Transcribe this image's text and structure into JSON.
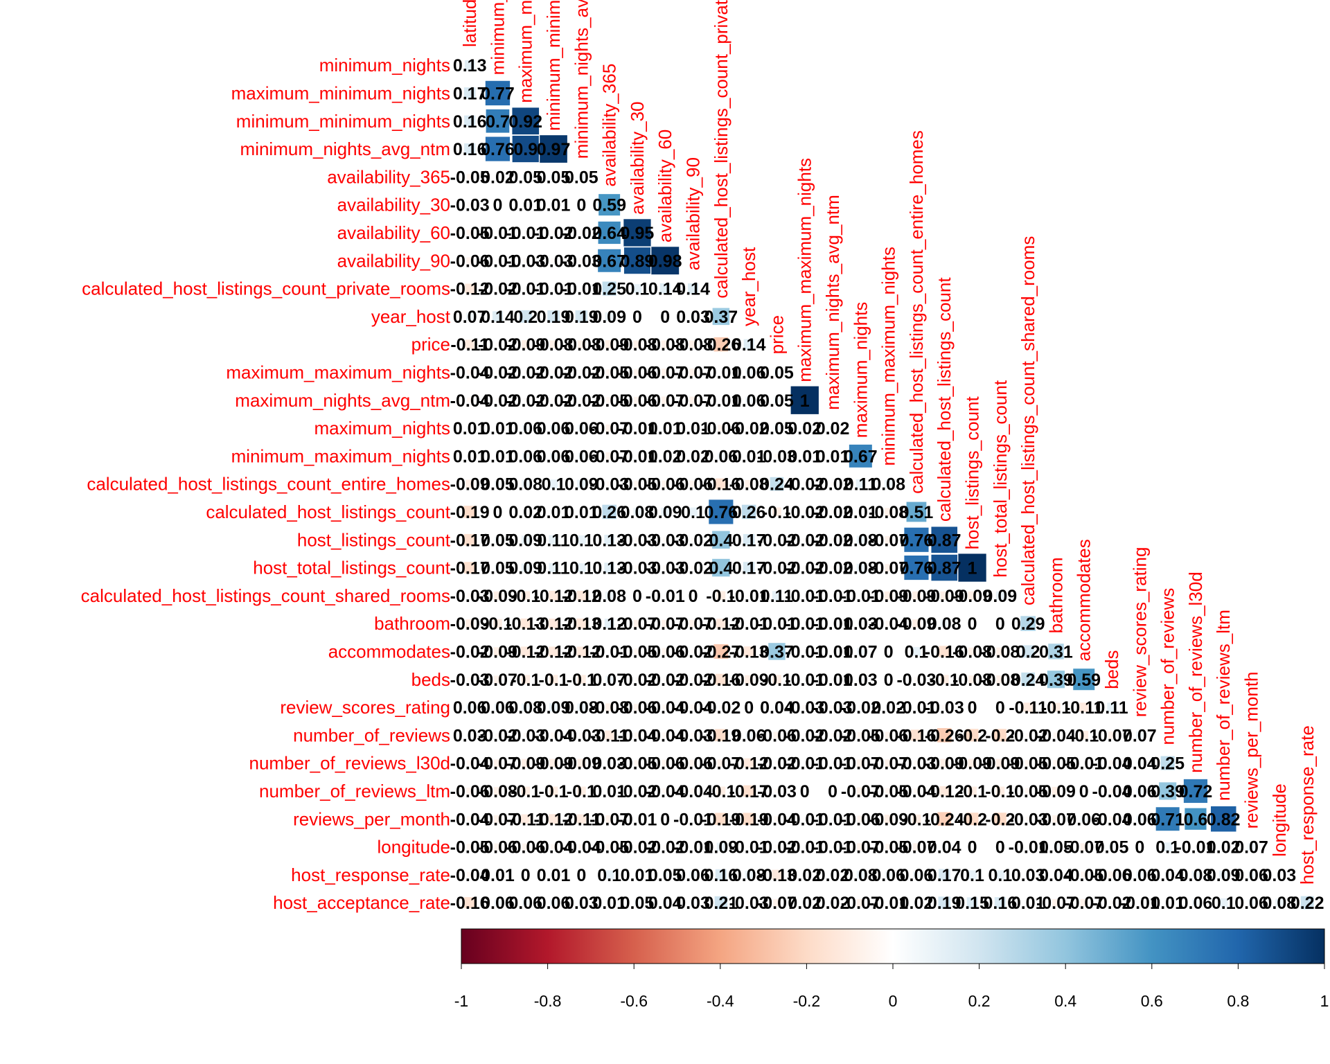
{
  "chart_data": {
    "type": "heatmap",
    "variables": [
      "latitude",
      "minimum_nights",
      "maximum_minimum_nights",
      "minimum_minimum_nights",
      "minimum_nights_avg_ntm",
      "availability_365",
      "availability_30",
      "availability_60",
      "availability_90",
      "calculated_host_listings_count_private_rooms",
      "year_host",
      "price",
      "maximum_maximum_nights",
      "maximum_nights_avg_ntm",
      "maximum_nights",
      "minimum_maximum_nights",
      "calculated_host_listings_count_entire_homes",
      "calculated_host_listings_count",
      "host_listings_count",
      "host_total_listings_count",
      "calculated_host_listings_count_shared_rooms",
      "bathroom",
      "accommodates",
      "beds",
      "review_scores_rating",
      "number_of_reviews",
      "number_of_reviews_l30d",
      "number_of_reviews_ltm",
      "reviews_per_month",
      "longitude",
      "host_response_rate",
      "host_acceptance_rate"
    ],
    "row_labels": [
      "minimum_nights",
      "maximum_minimum_nights",
      "minimum_minimum_nights",
      "minimum_nights_avg_ntm",
      "availability_365",
      "availability_30",
      "availability_60",
      "availability_90",
      "calculated_host_listings_count_private_rooms",
      "year_host",
      "price",
      "maximum_maximum_nights",
      "maximum_nights_avg_ntm",
      "maximum_nights",
      "minimum_maximum_nights",
      "calculated_host_listings_count_entire_homes",
      "calculated_host_listings_count",
      "host_listings_count",
      "host_total_listings_count",
      "calculated_host_listings_count_shared_rooms",
      "bathroom",
      "accommodates",
      "beds",
      "review_scores_rating",
      "number_of_reviews",
      "number_of_reviews_l30d",
      "number_of_reviews_ltm",
      "reviews_per_month",
      "longitude",
      "host_response_rate",
      "host_acceptance_rate"
    ],
    "column_labels": [
      "latitude",
      "minimum_nights",
      "maximum_minimum_nights",
      "minimum_minimum_nights",
      "minimum_nights_avg_ntm",
      "availability_365",
      "availability_30",
      "availability_60",
      "availability_90",
      "calculated_host_listings_count_private_rooms",
      "year_host",
      "price",
      "maximum_maximum_nights",
      "maximum_nights_avg_ntm",
      "maximum_nights",
      "minimum_maximum_nights",
      "calculated_host_listings_count_entire_homes",
      "calculated_host_listings_count",
      "host_listings_count",
      "host_total_listings_count",
      "calculated_host_listings_count_shared_rooms",
      "bathroom",
      "accommodates",
      "beds",
      "review_scores_rating",
      "number_of_reviews",
      "number_of_reviews_l30d",
      "number_of_reviews_ltm",
      "reviews_per_month",
      "longitude",
      "host_response_rate"
    ],
    "matrix": [
      [
        0.13
      ],
      [
        0.17,
        0.77
      ],
      [
        0.16,
        0.7,
        0.92
      ],
      [
        0.16,
        0.76,
        0.9,
        0.97
      ],
      [
        -0.05,
        0.02,
        0.05,
        0.05,
        0.05
      ],
      [
        -0.03,
        0,
        0.01,
        0.01,
        0,
        0.59
      ],
      [
        -0.05,
        -0.01,
        -0.01,
        -0.02,
        -0.02,
        0.64,
        0.95
      ],
      [
        -0.06,
        -0.01,
        -0.03,
        -0.03,
        -0.03,
        0.67,
        0.89,
        0.98
      ],
      [
        -0.12,
        -0.02,
        -0.01,
        -0.01,
        -0.01,
        0.25,
        0.1,
        0.14,
        0.14
      ],
      [
        0.07,
        0.14,
        0.2,
        0.19,
        0.19,
        0.09,
        0,
        0,
        0.03,
        0.37
      ],
      [
        -0.11,
        -0.02,
        -0.09,
        -0.08,
        -0.08,
        -0.09,
        -0.08,
        -0.08,
        -0.08,
        -0.26,
        0.14
      ],
      [
        -0.04,
        -0.02,
        -0.02,
        -0.02,
        -0.02,
        -0.05,
        -0.06,
        -0.07,
        -0.07,
        -0.01,
        0.06,
        0.05
      ],
      [
        -0.04,
        -0.02,
        -0.02,
        -0.02,
        -0.02,
        -0.05,
        -0.06,
        -0.07,
        -0.07,
        -0.01,
        0.06,
        0.05,
        1
      ],
      [
        0.01,
        0.01,
        0.06,
        0.06,
        0.06,
        -0.07,
        -0.01,
        0.01,
        0.01,
        -0.06,
        -0.02,
        0.05,
        0.02,
        0.02
      ],
      [
        0.01,
        0.01,
        0.06,
        0.06,
        0.06,
        -0.07,
        -0.01,
        0.02,
        0.02,
        0.06,
        0.01,
        -0.03,
        0.01,
        0.01,
        0.67
      ],
      [
        -0.09,
        0.05,
        0.08,
        0.1,
        0.09,
        -0.03,
        -0.05,
        -0.06,
        -0.06,
        -0.16,
        -0.08,
        0.24,
        -0.02,
        -0.02,
        0.11,
        0.08
      ],
      [
        -0.19,
        0,
        0.02,
        0.01,
        0.01,
        0.26,
        0.08,
        0.09,
        0.1,
        0.76,
        0.26,
        -0.1,
        -0.02,
        -0.02,
        0.01,
        -0.08,
        0.51
      ],
      [
        -0.17,
        0.05,
        0.09,
        0.11,
        0.1,
        0.13,
        -0.03,
        -0.03,
        -0.02,
        0.4,
        0.17,
        -0.02,
        -0.02,
        -0.02,
        0.08,
        -0.07,
        0.76,
        0.87
      ],
      [
        -0.17,
        0.05,
        0.09,
        0.11,
        0.1,
        0.13,
        -0.03,
        -0.03,
        -0.02,
        0.4,
        0.17,
        -0.02,
        -0.02,
        -0.02,
        0.08,
        -0.07,
        0.76,
        0.87,
        1
      ],
      [
        -0.03,
        -0.09,
        -0.1,
        -0.12,
        -0.12,
        0.08,
        0,
        -0.01,
        0,
        -0.1,
        -0.01,
        0.11,
        -0.01,
        -0.01,
        -0.01,
        -0.09,
        -0.09,
        -0.09,
        -0.09,
        0.09
      ],
      [
        -0.09,
        -0.1,
        -0.13,
        -0.12,
        -0.13,
        0.12,
        -0.07,
        -0.07,
        -0.07,
        -0.12,
        -0.01,
        -0.01,
        -0.01,
        -0.01,
        0.03,
        -0.04,
        -0.09,
        0.08,
        0,
        0,
        0.29
      ],
      [
        -0.02,
        -0.09,
        -0.12,
        -0.12,
        -0.12,
        -0.01,
        -0.05,
        -0.06,
        -0.02,
        -0.27,
        -0.13,
        0.37,
        -0.01,
        -0.01,
        0.07,
        0,
        0.1,
        -0.16,
        -0.08,
        -0.08,
        0.2,
        0.31
      ],
      [
        -0.03,
        -0.07,
        -0.1,
        -0.1,
        -0.1,
        0.07,
        -0.02,
        -0.02,
        -0.02,
        -0.16,
        -0.09,
        -0.1,
        -0.01,
        -0.01,
        0.03,
        0,
        -0.03,
        -0.1,
        -0.08,
        -0.08,
        0.24,
        0.39,
        0.59
      ],
      [
        0.06,
        0.06,
        0.08,
        0.09,
        0.08,
        -0.08,
        -0.06,
        -0.04,
        -0.04,
        -0.02,
        0,
        0.04,
        -0.03,
        -0.03,
        -0.02,
        0.02,
        -0.01,
        -0.03,
        0,
        0,
        -0.11,
        -0.1,
        -0.11,
        0.11
      ],
      [
        0.03,
        -0.02,
        -0.03,
        -0.04,
        -0.03,
        -0.11,
        -0.04,
        -0.04,
        -0.03,
        -0.19,
        0.06,
        -0.06,
        -0.02,
        -0.02,
        -0.05,
        -0.06,
        -0.16,
        -0.26,
        -0.2,
        -0.2,
        -0.02,
        -0.04,
        -0.1,
        -0.07,
        0.07
      ],
      [
        -0.04,
        -0.07,
        -0.09,
        -0.09,
        -0.09,
        0.03,
        -0.05,
        -0.06,
        -0.06,
        -0.07,
        -0.12,
        -0.02,
        -0.01,
        -0.01,
        -0.07,
        -0.07,
        -0.03,
        -0.09,
        -0.09,
        -0.09,
        -0.05,
        -0.05,
        -0.01,
        -0.04,
        0.04,
        0.25
      ],
      [
        -0.06,
        -0.08,
        -0.1,
        -0.1,
        -0.1,
        0.01,
        -0.02,
        -0.04,
        -0.04,
        -0.1,
        -0.17,
        -0.03,
        0,
        0,
        -0.07,
        -0.05,
        -0.04,
        -0.12,
        -0.1,
        -0.1,
        -0.05,
        -0.09,
        0,
        -0.04,
        0.06,
        0.39,
        0.72
      ],
      [
        -0.04,
        -0.07,
        -0.11,
        -0.12,
        -0.11,
        -0.07,
        -0.01,
        0,
        -0.01,
        -0.19,
        -0.19,
        -0.04,
        -0.01,
        -0.01,
        -0.06,
        -0.09,
        -0.1,
        -0.24,
        -0.2,
        -0.2,
        -0.03,
        -0.07,
        0.06,
        -0.04,
        0.06,
        0.71,
        0.6,
        0.82
      ],
      [
        -0.05,
        -0.06,
        -0.06,
        -0.04,
        -0.04,
        -0.05,
        -0.02,
        -0.02,
        -0.01,
        0.09,
        -0.01,
        -0.02,
        -0.01,
        -0.01,
        -0.07,
        -0.05,
        -0.07,
        0.04,
        0,
        0,
        -0.01,
        0.05,
        -0.07,
        0.05,
        0,
        0.1,
        -0.01,
        0.02,
        0.07
      ],
      [
        -0.04,
        0.01,
        0,
        0.01,
        0,
        0.1,
        0.01,
        0.05,
        0.06,
        0.16,
        0.08,
        -0.13,
        0.02,
        0.02,
        0.08,
        0.06,
        0.06,
        0.17,
        0.1,
        0.1,
        0.03,
        0.04,
        -0.05,
        -0.06,
        0.06,
        0.04,
        0.08,
        0.09,
        0.06,
        0.03
      ],
      [
        -0.16,
        0.06,
        0.06,
        0.06,
        0.03,
        0.01,
        0.05,
        0.04,
        0.03,
        0.21,
        -0.03,
        -0.07,
        0.02,
        0.02,
        -0.07,
        -0.01,
        0.02,
        0.19,
        0.15,
        0.16,
        0.01,
        -0.07,
        -0.07,
        -0.02,
        -0.01,
        0.01,
        0.06,
        0.1,
        0.06,
        0.08,
        0.22
      ]
    ],
    "colorbar": {
      "range": [
        -1,
        1
      ],
      "ticks": [
        "-1",
        "-0.8",
        "-0.6",
        "-0.4",
        "-0.2",
        "0",
        "0.2",
        "0.4",
        "0.6",
        "0.8",
        "1"
      ],
      "colors": [
        "#67001F",
        "#B2182B",
        "#D6604D",
        "#F4A582",
        "#FDDBC7",
        "#FFFFFF",
        "#D1E5F0",
        "#92C5DE",
        "#4393C3",
        "#2166AC",
        "#053061"
      ]
    },
    "label_color": "#FF0000",
    "value_color": "#000000",
    "title": "",
    "xlabel": "",
    "ylabel": ""
  }
}
